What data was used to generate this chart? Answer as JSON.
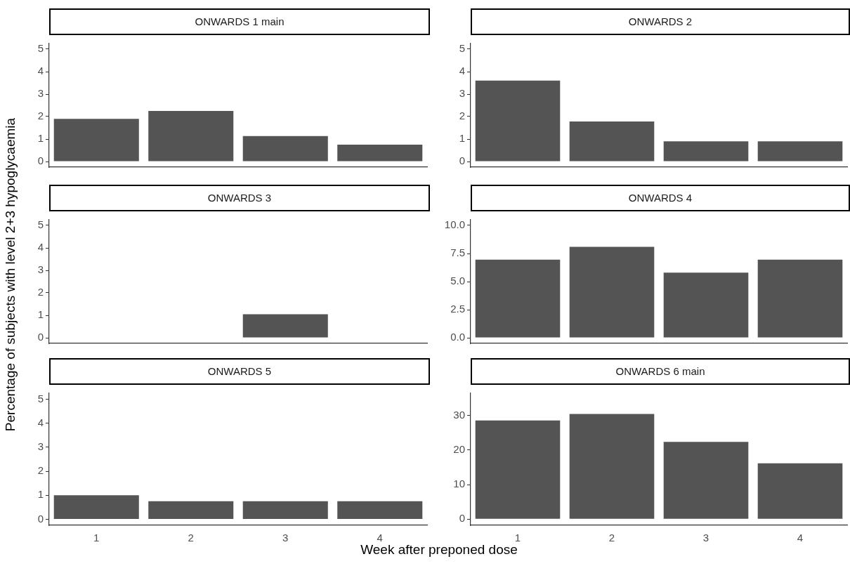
{
  "chart_data": [
    {
      "type": "bar",
      "title": "ONWARDS 1 main",
      "ylabel": "Percentage of subjects with level 2+3 hypoglycaemia",
      "categories": [
        "1",
        "2",
        "3",
        "4"
      ],
      "values": [
        1.9,
        2.25,
        1.13,
        0.75
      ],
      "color": "#545454",
      "ylim": [
        -0.25,
        5.25
      ],
      "yticks": [
        0,
        1,
        2,
        3,
        4,
        5
      ],
      "tick_labels": "y"
    },
    {
      "type": "bar",
      "title": "ONWARDS 2",
      "categories": [
        "1",
        "2",
        "3",
        "4"
      ],
      "values": [
        3.6,
        1.78,
        0.9,
        0.9
      ],
      "color": "#545454",
      "ylim": [
        -0.25,
        5.25
      ],
      "yticks": [
        0,
        1,
        2,
        3,
        4,
        5
      ],
      "tick_labels": "y"
    },
    {
      "type": "bar",
      "title": "ONWARDS 3",
      "categories": [
        "1",
        "2",
        "3",
        "4"
      ],
      "values": [
        0,
        0,
        1.05,
        0
      ],
      "color": "#545454",
      "ylim": [
        -0.25,
        5.25
      ],
      "yticks": [
        0,
        1,
        2,
        3,
        4,
        5
      ],
      "tick_labels": "y"
    },
    {
      "type": "bar",
      "title": "ONWARDS 4",
      "categories": [
        "1",
        "2",
        "3",
        "4"
      ],
      "values": [
        6.95,
        8.1,
        5.8,
        6.95
      ],
      "color": "#545454",
      "ylim": [
        -0.5,
        10.5
      ],
      "yticks": [
        {
          "value": 0,
          "label": "0.0"
        },
        2.5,
        {
          "value": 5,
          "label": "5.0"
        },
        7.5,
        {
          "value": 10,
          "label": "10.0"
        }
      ],
      "tick_labels": "y"
    },
    {
      "type": "bar",
      "title": "ONWARDS 5",
      "xlabel": "Week after preponed dose",
      "categories": [
        "1",
        "2",
        "3",
        "4"
      ],
      "values": [
        1.0,
        0.75,
        0.75,
        0.75
      ],
      "color": "#545454",
      "ylim": [
        -0.25,
        5.25
      ],
      "yticks": [
        0,
        1,
        2,
        3,
        4,
        5
      ]
    },
    {
      "type": "bar",
      "title": "ONWARDS 6 main",
      "categories": [
        "1",
        "2",
        "3",
        "4"
      ],
      "values": [
        28.6,
        30.5,
        22.4,
        16.2
      ],
      "color": "#545454",
      "ylim": [
        -1.8,
        36.5
      ],
      "yticks": [
        0,
        10,
        20,
        30
      ]
    }
  ]
}
